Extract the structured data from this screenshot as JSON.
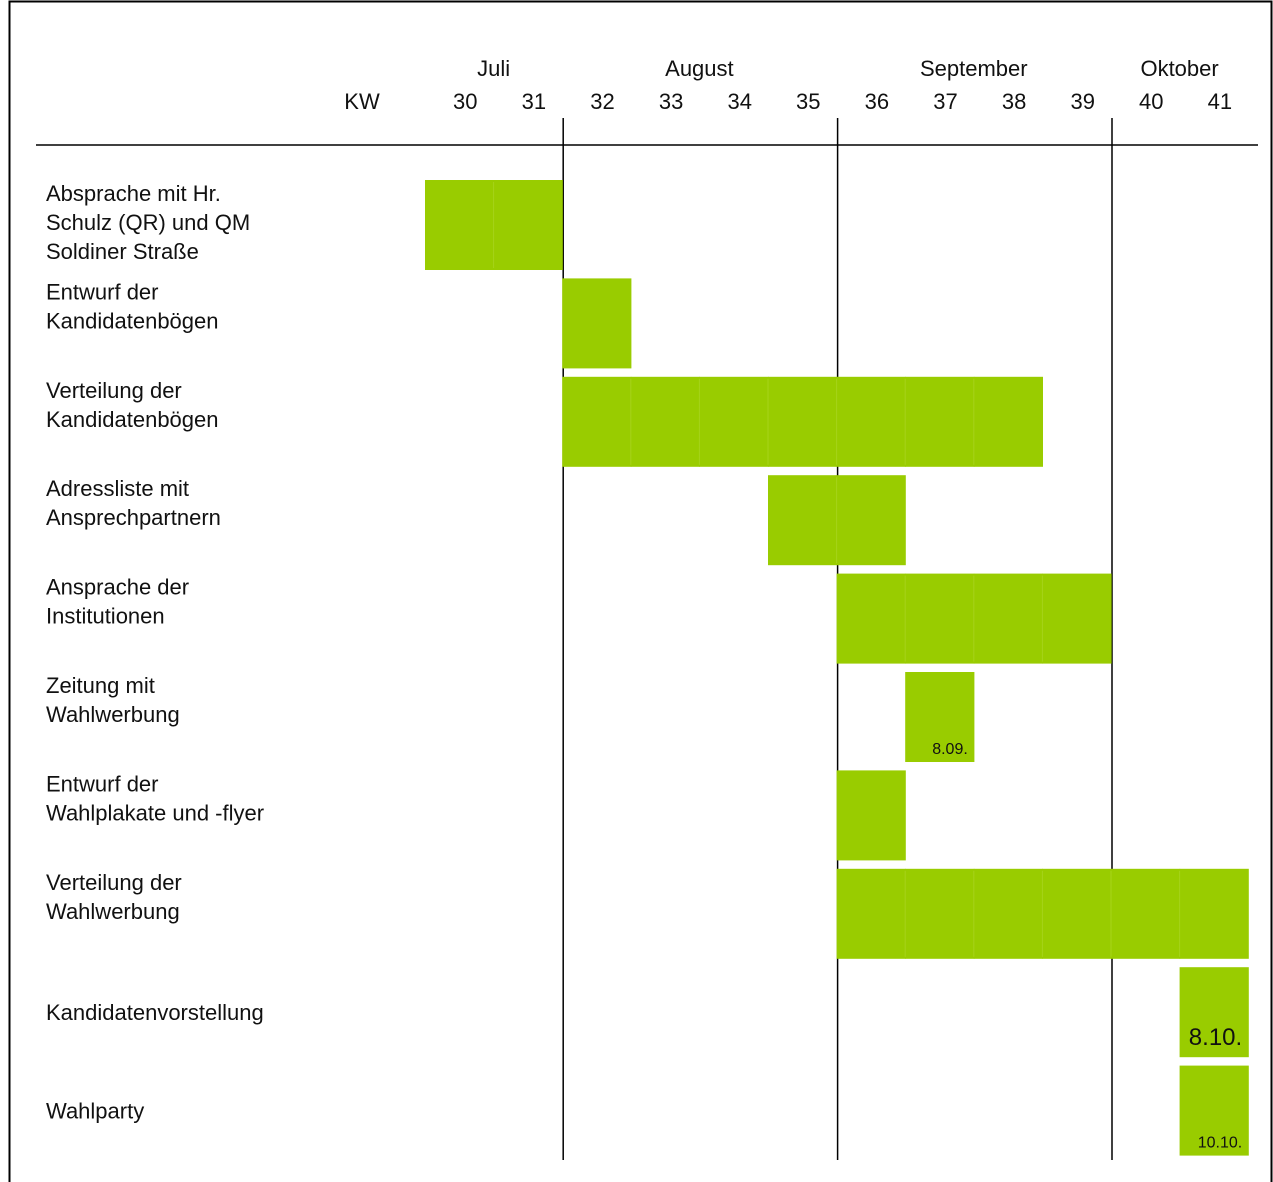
{
  "chart_data": {
    "type": "gantt",
    "week_header_label": "KW",
    "weeks": [
      "30",
      "31",
      "32",
      "33",
      "34",
      "35",
      "36",
      "37",
      "38",
      "39",
      "40",
      "41"
    ],
    "months": [
      {
        "label": "Juli",
        "weeks": [
          "30",
          "31"
        ]
      },
      {
        "label": "August",
        "weeks": [
          "32",
          "33",
          "34",
          "35"
        ]
      },
      {
        "label": "September",
        "weeks": [
          "36",
          "37",
          "38",
          "39"
        ]
      },
      {
        "label": "Oktober",
        "weeks": [
          "40",
          "41"
        ]
      }
    ],
    "tasks": [
      {
        "name": "Absprache mit Hr.\nSchulz (QR) und QM\nSoldiner Straße",
        "start_week": 30,
        "end_week": 31,
        "note": ""
      },
      {
        "name": "Entwurf der\nKandidatenbögen",
        "start_week": 32,
        "end_week": 32,
        "note": ""
      },
      {
        "name": "Verteilung der\nKandidatenbögen",
        "start_week": 32,
        "end_week": 38,
        "note": ""
      },
      {
        "name": "Adressliste mit\nAnsprechpartnern",
        "start_week": 35,
        "end_week": 36,
        "note": ""
      },
      {
        "name": "Ansprache der\nInstitutionen",
        "start_week": 36,
        "end_week": 39,
        "note": ""
      },
      {
        "name": "Zeitung mit\nWahlwerbung",
        "start_week": 37,
        "end_week": 37,
        "note": "8.09."
      },
      {
        "name": "Entwurf der\nWahlplakate und -flyer",
        "start_week": 36,
        "end_week": 36,
        "note": ""
      },
      {
        "name": "Verteilung der\nWahlwerbung",
        "start_week": 36,
        "end_week": 41,
        "note": ""
      },
      {
        "name": "Kandidatenvorstellung",
        "start_week": 41,
        "end_week": 41,
        "note": "8.10."
      },
      {
        "name": "Wahlparty",
        "start_week": 41,
        "end_week": 41,
        "note": "10.10."
      }
    ],
    "bar_color": "#99cc00",
    "line_color": "#000000",
    "grid": false,
    "legend": "none"
  }
}
